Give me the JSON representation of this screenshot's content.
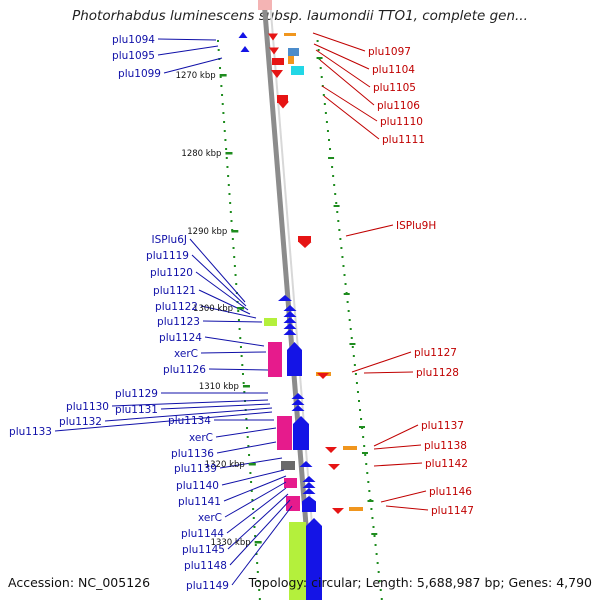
{
  "title": "Photorhabdus luminescens subsp. laumondii TTO1, complete gen...",
  "footer": {
    "accession": "Accession: NC_005126",
    "topology": "Topology: circular; Length: 5,688,987 bp; Genes: 4,790"
  },
  "colors": {
    "left_label": "#1010a8",
    "right_label": "#c00000",
    "backbone": "#8c8c8c",
    "blue_feature": "#1414e6",
    "red_feature": "#e61414",
    "magenta_feature": "#e61b8c",
    "lime_feature": "#b4f03c",
    "orange_feature": "#f0961e",
    "tick_green": "#1e8c1e"
  },
  "kbp_ticks": [
    "1270 kbp",
    "1280 kbp",
    "1290 kbp",
    "1300 kbp",
    "1310 kbp",
    "1320 kbp",
    "1330 kbp"
  ],
  "left_genes": [
    "plu1094",
    "plu1095",
    "plu1099",
    "ISPlu6J",
    "plu1119",
    "plu1120",
    "plu1121",
    "plu1122",
    "plu1123",
    "plu1124",
    "xerC",
    "plu1126",
    "plu1129",
    "plu1130",
    "plu1131",
    "plu1132",
    "plu1133",
    "plu1134",
    "xerC",
    "plu1136",
    "plu1139",
    "plu1140",
    "plu1141",
    "xerC",
    "plu1144",
    "plu1145",
    "plu1148",
    "plu1149"
  ],
  "right_genes": [
    "plu1097",
    "plu1104",
    "plu1105",
    "plu1106",
    "plu1110",
    "plu1111",
    "ISPlu9H",
    "plu1127",
    "plu1128",
    "plu1137",
    "plu1138",
    "plu1142",
    "plu1146",
    "plu1147"
  ]
}
